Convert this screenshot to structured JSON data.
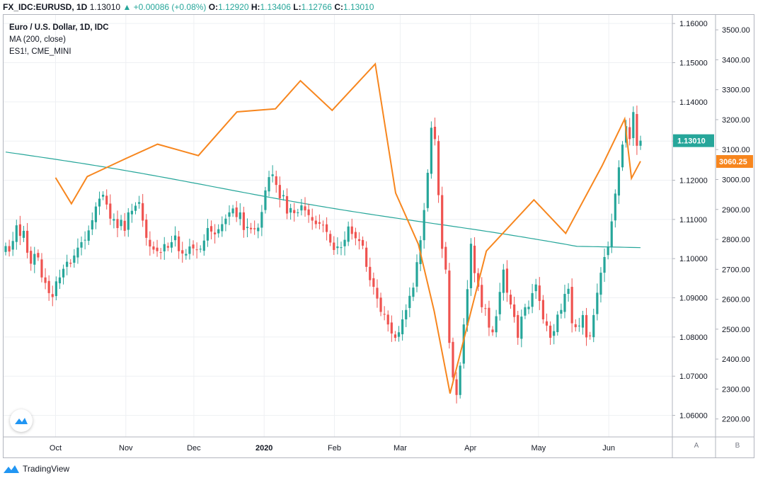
{
  "header": {
    "symbol": "FX_IDC:EURUSD, 1D",
    "last": "1.13010",
    "change": "+0.00086 (+0.08%)",
    "o_label": "O:",
    "o_value": "1.12920",
    "h_label": "H:",
    "h_value": "1.13406",
    "l_label": "L:",
    "l_value": "1.12766",
    "c_label": "C:",
    "c_value": "1.13010"
  },
  "legend": {
    "title": "Euro / U.S. Dollar, 1D, IDC",
    "ma": "MA (200, close)",
    "compare": "ES1!, CME_MINI"
  },
  "footer": {
    "brand": "TradingView"
  },
  "scale_buttons": {
    "a": "A",
    "b": "B"
  },
  "colors": {
    "up": "#26a69a",
    "down": "#ef5350",
    "ma": "#26a69a",
    "es": "#f7861e",
    "last_label": "#26a69a",
    "es_label": "#f7861e",
    "grid": "#eef0f3"
  },
  "chart_data": {
    "type": "line",
    "title": "Euro / U.S. Dollar, 1D, IDC",
    "x_tick_labels": [
      "Oct",
      "Nov",
      "Dec",
      "2020",
      "Feb",
      "Mar",
      "Apr",
      "May",
      "Jun"
    ],
    "y_left_ticks": [
      "1.16000",
      "1.15000",
      "1.14000",
      "1.13000",
      "1.12000",
      "1.11000",
      "1.10000",
      "1.09000",
      "1.08000",
      "1.07000",
      "1.06000"
    ],
    "y_left_range": [
      1.0545,
      1.1622
    ],
    "y_right_ticks": [
      "3500.00",
      "3400.00",
      "3300.00",
      "3200.00",
      "3100.00",
      "3000.00",
      "2900.00",
      "2800.00",
      "2700.00",
      "2600.00",
      "2500.00",
      "2400.00",
      "2300.00",
      "2200.00"
    ],
    "y_right_range": [
      2140,
      3550
    ],
    "last_price_label": "1.13010",
    "last_price": 1.1301,
    "es_last_label": "3060.25",
    "es_last": 3060.25,
    "series": [
      {
        "name": "Euro / U.S. Dollar",
        "kind": "candlestick",
        "close": [
          1.1032,
          1.1018,
          1.1045,
          1.1085,
          1.1058,
          1.1071,
          1.1015,
          1.0987,
          1.1012,
          1.1003,
          1.0952,
          1.0938,
          1.0912,
          1.0902,
          1.0942,
          1.0952,
          1.0974,
          1.0992,
          1.0987,
          1.1008,
          1.1028,
          1.1042,
          1.1048,
          1.1072,
          1.1098,
          1.1133,
          1.1153,
          1.1163,
          1.1138,
          1.1102,
          1.1101,
          1.1078,
          1.1099,
          1.1071,
          1.1118,
          1.1122,
          1.1135,
          1.1144,
          1.1097,
          1.1053,
          1.1031,
          1.1023,
          1.1019,
          1.1016,
          1.1037,
          1.1028,
          1.1042,
          1.1059,
          1.1019,
          1.1013,
          1.1012,
          1.1031,
          1.1026,
          1.1022,
          1.1025,
          1.1046,
          1.1078,
          1.1069,
          1.1062,
          1.1075,
          1.1088,
          1.1102,
          1.1118,
          1.1128,
          1.1106,
          1.1118,
          1.1073,
          1.1081,
          1.1075,
          1.1075,
          1.1079,
          1.1119,
          1.1174,
          1.1208,
          1.1215,
          1.1188,
          1.1154,
          1.1162,
          1.1115,
          1.1129,
          1.1116,
          1.1118,
          1.1136,
          1.1123,
          1.1111,
          1.1097,
          1.1088,
          1.1089,
          1.1085,
          1.1068,
          1.1041,
          1.1022,
          1.1031,
          1.1029,
          1.1048,
          1.1082,
          1.1063,
          1.1052,
          1.1045,
          1.1033,
          1.0979,
          1.0945,
          1.0928,
          1.0898,
          1.0864,
          1.0857,
          1.0832,
          1.0809,
          1.0798,
          1.0812,
          1.0845,
          1.0869,
          1.0905,
          1.0926,
          1.0991,
          1.1047,
          1.1124,
          1.1219,
          1.1334,
          1.1305,
          1.1162,
          1.1025,
          1.0972,
          1.0785,
          1.0697,
          1.0652,
          1.0727,
          1.0832,
          1.0922,
          1.1038,
          1.0963,
          1.0928,
          1.0876,
          1.0872,
          1.0824,
          1.0812,
          1.0853,
          1.0915,
          1.0972,
          1.0913,
          1.0883,
          1.0851,
          1.0798,
          1.0852,
          1.0876,
          1.0877,
          1.0912,
          1.0934,
          1.0892,
          1.0845,
          1.0829,
          1.0798,
          1.0815,
          1.0857,
          1.0869,
          1.091,
          1.0923,
          1.0835,
          1.0825,
          1.0829,
          1.0856,
          1.0799,
          1.0802,
          1.0856,
          1.0913,
          1.0964,
          1.1004,
          1.1031,
          1.1095,
          1.1166,
          1.1233,
          1.1291,
          1.1338,
          1.1305,
          1.1374,
          1.1288,
          1.1301
        ]
      },
      {
        "name": "MA (200, close)",
        "kind": "line",
        "start": 1.1272,
        "end": 1.1028
      },
      {
        "name": "ES1!",
        "kind": "line",
        "x": [
          "2019-10-01",
          "2019-10-08",
          "2019-10-15",
          "2019-11-01",
          "2019-11-15",
          "2019-12-03",
          "2019-12-20",
          "2020-01-06",
          "2020-01-17",
          "2020-01-31",
          "2020-02-19",
          "2020-02-28",
          "2020-03-09",
          "2020-03-16",
          "2020-03-23",
          "2020-04-08",
          "2020-04-29",
          "2020-05-13",
          "2020-05-29",
          "2020-06-08",
          "2020-06-11",
          "2020-06-15"
        ],
        "y": [
          3006,
          2919,
          3010,
          3070,
          3118,
          3080,
          3226,
          3236,
          3330,
          3231,
          3386,
          2955,
          2784,
          2560,
          2285,
          2761,
          2932,
          2820,
          3045,
          3202,
          3004,
          3061
        ]
      }
    ]
  }
}
